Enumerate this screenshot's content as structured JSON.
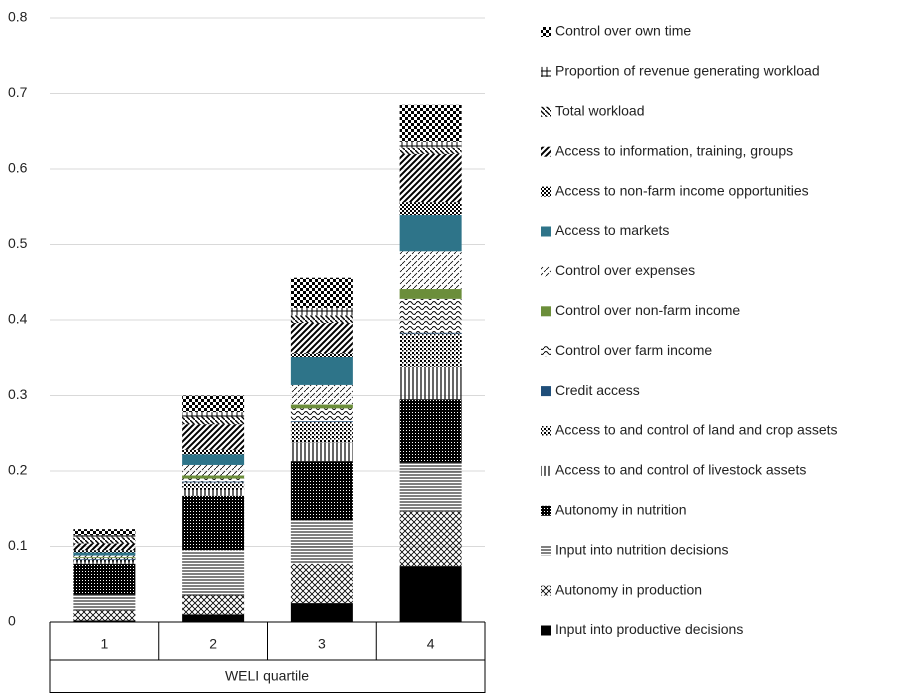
{
  "chart_data": {
    "type": "stacked_bar",
    "xlabel": "WELI quartile",
    "categories": [
      "1",
      "2",
      "3",
      "4"
    ],
    "ylim": [
      0,
      0.8
    ],
    "yticks": [
      0,
      0.1,
      0.2,
      0.3,
      0.4,
      0.5,
      0.6,
      0.7,
      0.8
    ],
    "grid": true,
    "legend": "right",
    "series": [
      {
        "name": "Input into productive decisions",
        "color": "#000000",
        "pattern": "solid",
        "values": [
          0.002,
          0.01,
          0.025,
          0.074
        ]
      },
      {
        "name": "Autonomy in production",
        "color": "#000000",
        "pattern": "crosshatch",
        "values": [
          0.013,
          0.025,
          0.052,
          0.072
        ]
      },
      {
        "name": "Input into nutrition decisions",
        "color": "#000000",
        "pattern": "hlines",
        "values": [
          0.021,
          0.06,
          0.058,
          0.065
        ]
      },
      {
        "name": "Autonomy in nutrition",
        "color": "#000000",
        "pattern": "densedots",
        "values": [
          0.041,
          0.072,
          0.078,
          0.084
        ]
      },
      {
        "name": "Access to and control of livestock assets",
        "color": "#000000",
        "pattern": "vlines",
        "values": [
          0.003,
          0.008,
          0.025,
          0.043
        ]
      },
      {
        "name": "Access to and control of land and crop assets",
        "color": "#000000",
        "pattern": "dots",
        "values": [
          0.002,
          0.01,
          0.027,
          0.044
        ]
      },
      {
        "name": "Credit access",
        "color": "#1f4e79",
        "pattern": "solid",
        "values": [
          0.001,
          0.001,
          0.001,
          0.001
        ]
      },
      {
        "name": "Control over farm income",
        "color": "#000000",
        "pattern": "wave",
        "values": [
          0.002,
          0.004,
          0.017,
          0.045
        ]
      },
      {
        "name": "Control over non-farm income",
        "color": "#6b8e3a",
        "pattern": "solid",
        "values": [
          0.001,
          0.004,
          0.005,
          0.013
        ]
      },
      {
        "name": "Control over expenses",
        "color": "#000000",
        "pattern": "dashdiag",
        "values": [
          0.002,
          0.014,
          0.026,
          0.05
        ]
      },
      {
        "name": "Access to markets",
        "color": "#2e7489",
        "pattern": "solid",
        "values": [
          0.004,
          0.014,
          0.037,
          0.048
        ]
      },
      {
        "name": "Access to non-farm income opportunities",
        "color": "#000000",
        "pattern": "smallcheck",
        "values": [
          0.003,
          0.006,
          0.005,
          0.017
        ]
      },
      {
        "name": "Access to information, training,  groups",
        "color": "#000000",
        "pattern": "thickdiag",
        "values": [
          0.009,
          0.034,
          0.04,
          0.064
        ]
      },
      {
        "name": "Total workload",
        "color": "#000000",
        "pattern": "backdiag",
        "values": [
          0.008,
          0.01,
          0.01,
          0.008
        ]
      },
      {
        "name": "Proportion of revenue generating workload",
        "color": "#000000",
        "pattern": "grid",
        "values": [
          0.003,
          0.006,
          0.01,
          0.008
        ]
      },
      {
        "name": "Control over own time",
        "color": "#000000",
        "pattern": "checker",
        "values": [
          0.008,
          0.022,
          0.04,
          0.049
        ]
      }
    ]
  }
}
